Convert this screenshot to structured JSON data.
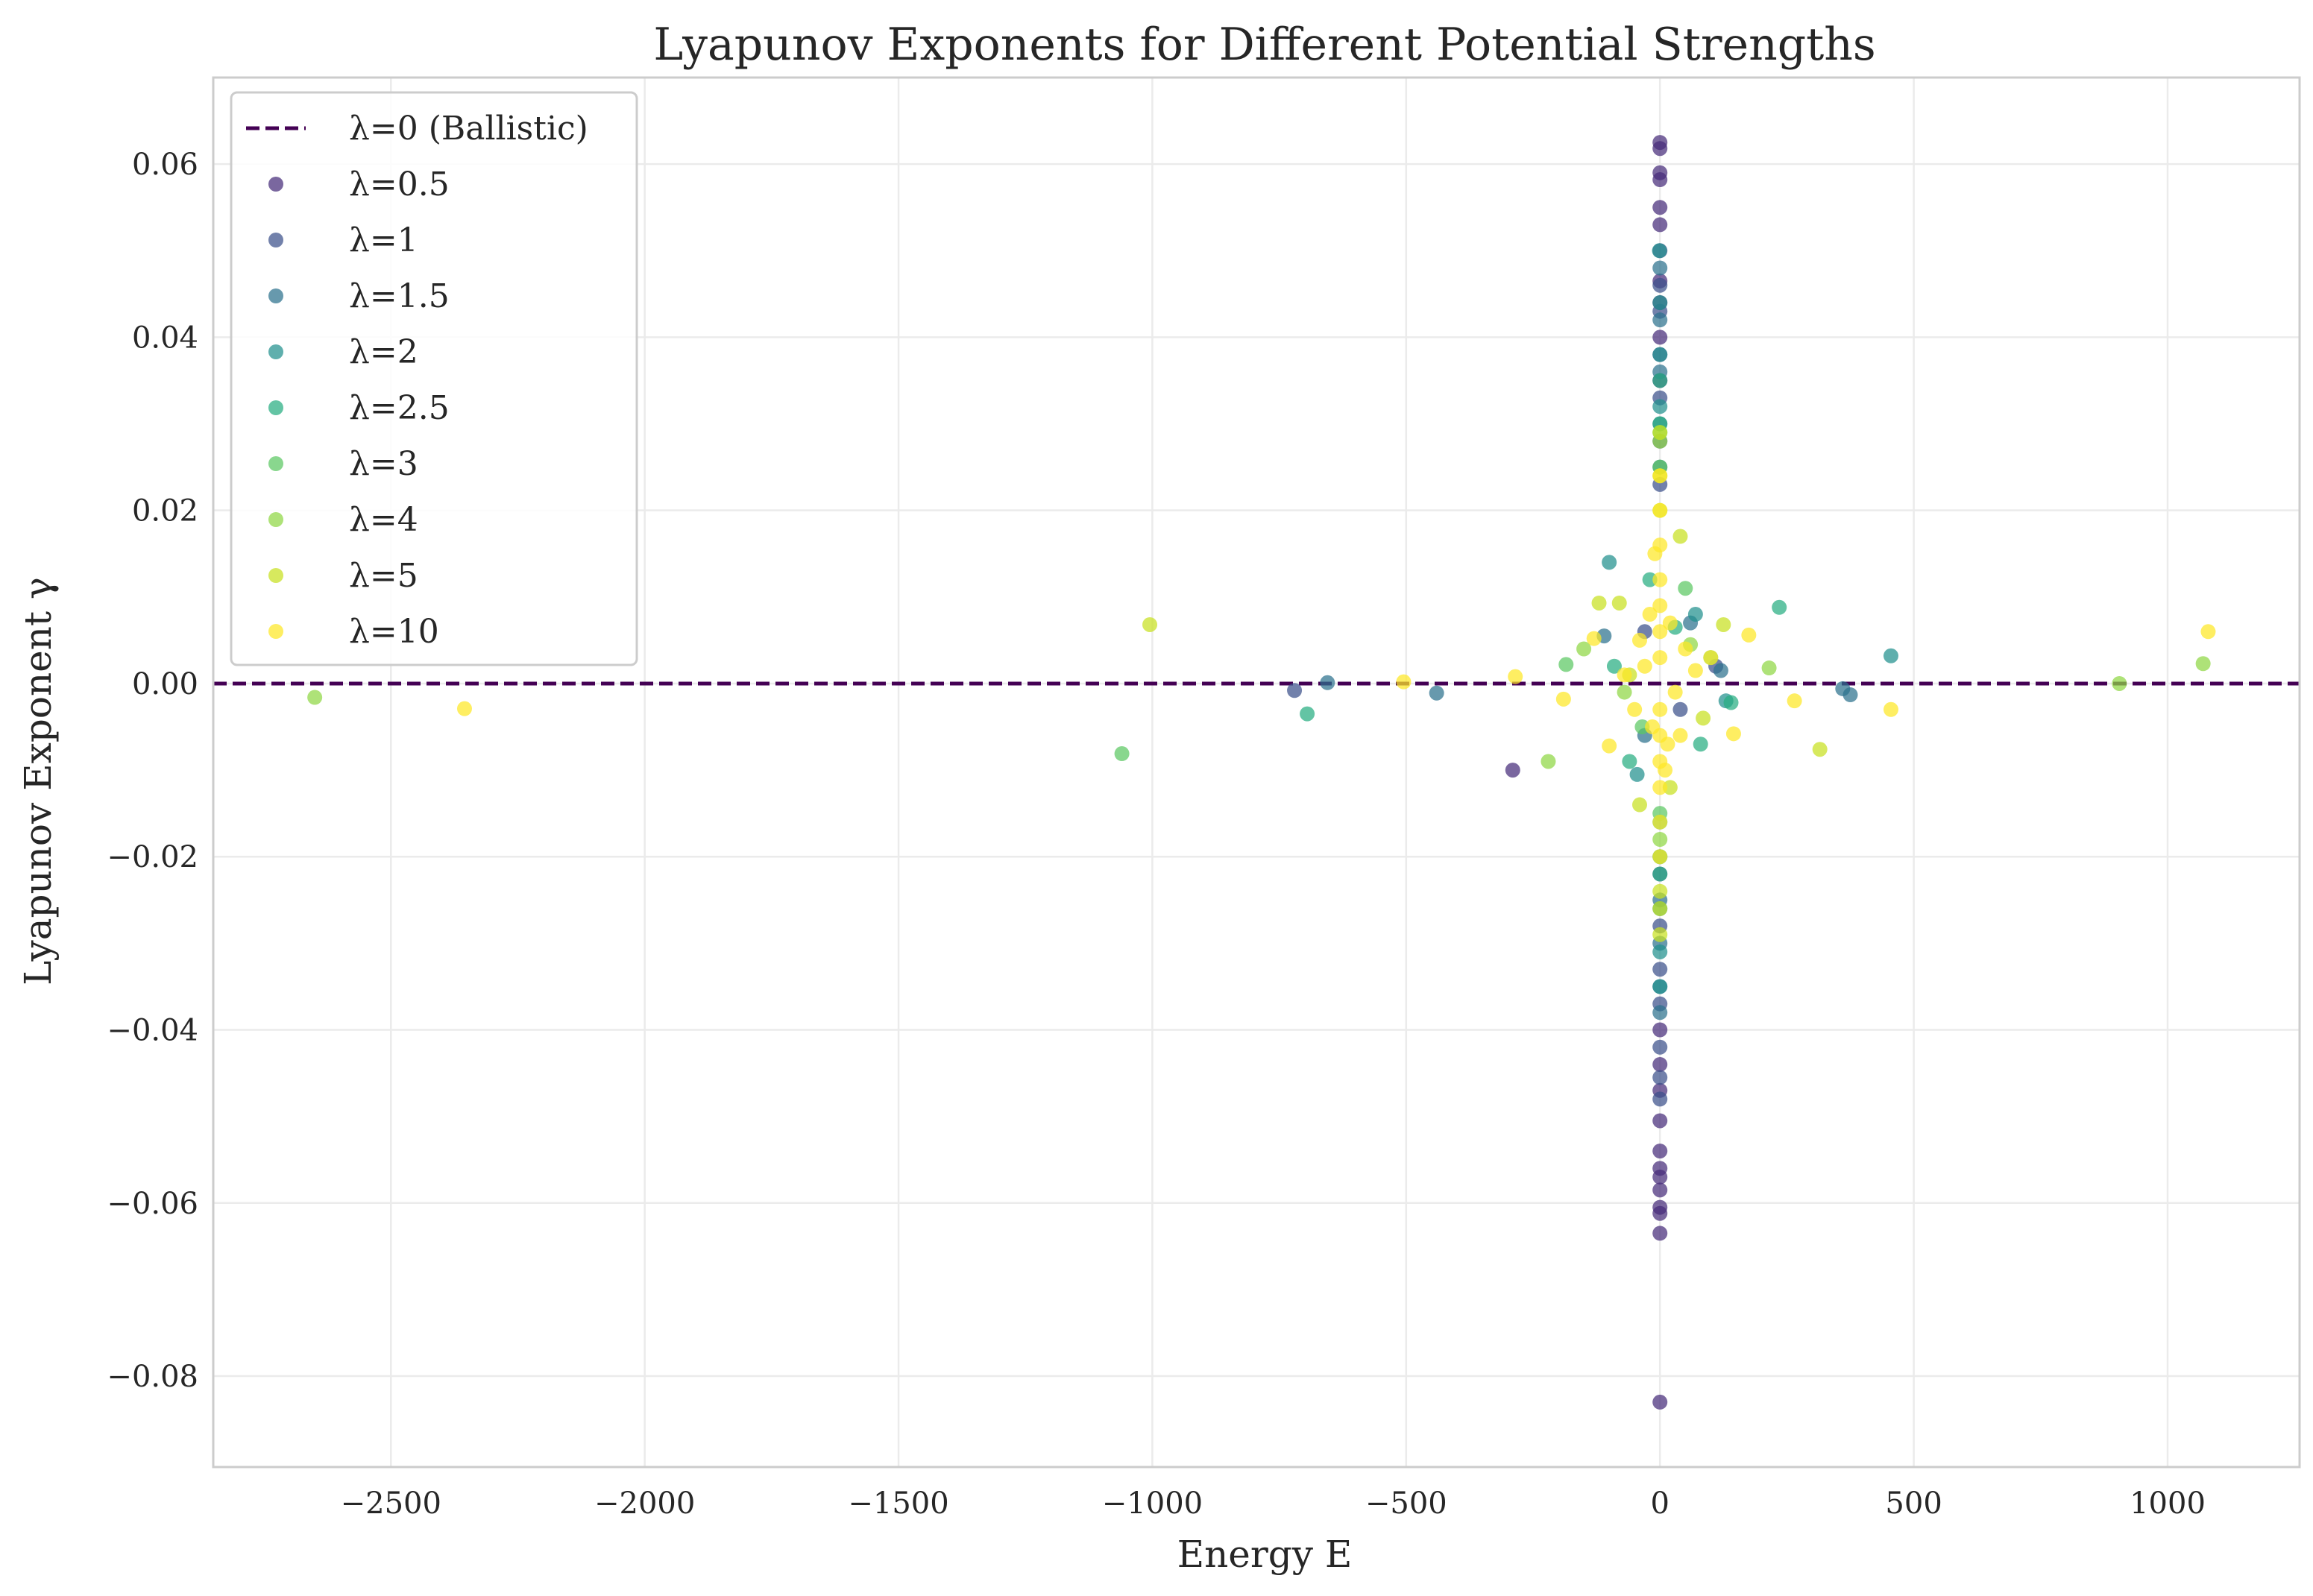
{
  "chart_data": {
    "type": "scatter",
    "title": "Lyapunov Exponents for Different Potential Strengths",
    "xlabel": "Energy E",
    "ylabel": "Lyapunov Exponent γ",
    "xlim": [
      -2850,
      1260
    ],
    "ylim": [
      -0.0905,
      0.07
    ],
    "xticks": [
      -2500,
      -2000,
      -1500,
      -1000,
      -500,
      0,
      500,
      1000
    ],
    "xtick_labels": [
      "−2500",
      "−2000",
      "−1500",
      "−1000",
      "−500",
      "0",
      "500",
      "1000"
    ],
    "yticks": [
      0.06,
      0.04,
      0.02,
      0.0,
      -0.02,
      -0.04,
      -0.06,
      -0.08
    ],
    "ytick_labels": [
      "0.06",
      "0.04",
      "0.02",
      "0.00",
      "−0.02",
      "−0.04",
      "−0.06",
      "−0.08"
    ],
    "grid": true,
    "legend_position": "top-left",
    "reference_line": {
      "label": "λ=0 (Ballistic)",
      "y": 0.0,
      "style": "dashed",
      "color": "#440154"
    },
    "series": [
      {
        "name": "λ=0.5",
        "color": "#472c7a",
        "points": [
          [
            -290,
            -0.01
          ],
          [
            0,
            0.0625
          ],
          [
            0,
            0.0618
          ],
          [
            0,
            0.059
          ],
          [
            0,
            0.0582
          ],
          [
            0,
            0.055
          ],
          [
            0,
            0.053
          ],
          [
            0,
            0.0465
          ],
          [
            0,
            0.044
          ],
          [
            0,
            0.04
          ],
          [
            0,
            0.035
          ],
          [
            0,
            -0.04
          ],
          [
            0,
            -0.044
          ],
          [
            0,
            -0.047
          ],
          [
            0,
            -0.0505
          ],
          [
            0,
            -0.054
          ],
          [
            0,
            -0.056
          ],
          [
            0,
            -0.057
          ],
          [
            0,
            -0.0585
          ],
          [
            0,
            -0.0605
          ],
          [
            0,
            -0.0612
          ],
          [
            0,
            -0.0635
          ],
          [
            0,
            -0.083
          ]
        ]
      },
      {
        "name": "λ=1",
        "color": "#3b518b",
        "points": [
          [
            -720,
            -0.0008
          ],
          [
            0,
            0.05
          ],
          [
            0,
            0.046
          ],
          [
            0,
            0.043
          ],
          [
            0,
            0.038
          ],
          [
            0,
            0.033
          ],
          [
            0,
            0.028
          ],
          [
            0,
            0.023
          ],
          [
            0,
            -0.022
          ],
          [
            0,
            -0.028
          ],
          [
            0,
            -0.033
          ],
          [
            0,
            -0.037
          ],
          [
            0,
            -0.042
          ],
          [
            0,
            -0.0455
          ],
          [
            0,
            -0.048
          ],
          [
            -30,
            0.006
          ],
          [
            40,
            -0.003
          ],
          [
            110,
            0.002
          ]
        ]
      },
      {
        "name": "λ=1.5",
        "color": "#2c718e",
        "points": [
          [
            -655,
            0.0001
          ],
          [
            -440,
            -0.0011
          ],
          [
            360,
            -0.0006
          ],
          [
            375,
            -0.0013
          ],
          [
            0,
            0.048
          ],
          [
            0,
            0.042
          ],
          [
            0,
            0.036
          ],
          [
            0,
            0.03
          ],
          [
            0,
            0.025
          ],
          [
            0,
            -0.025
          ],
          [
            0,
            -0.03
          ],
          [
            0,
            -0.035
          ],
          [
            0,
            -0.038
          ],
          [
            -110,
            0.0055
          ],
          [
            60,
            0.007
          ],
          [
            -30,
            -0.006
          ],
          [
            120,
            0.0015
          ]
        ]
      },
      {
        "name": "λ=2",
        "color": "#21908d",
        "points": [
          [
            455,
            0.0032
          ],
          [
            -1,
            0.05
          ],
          [
            0,
            0.044
          ],
          [
            0,
            0.038
          ],
          [
            0,
            0.032
          ],
          [
            0,
            -0.02
          ],
          [
            0,
            -0.026
          ],
          [
            0,
            -0.031
          ],
          [
            0,
            -0.035
          ],
          [
            -100,
            0.014
          ],
          [
            70,
            0.008
          ],
          [
            -45,
            -0.0105
          ],
          [
            130,
            -0.002
          ]
        ]
      },
      {
        "name": "λ=2.5",
        "color": "#27ad81",
        "points": [
          [
            -695,
            -0.0035
          ],
          [
            235,
            0.0088
          ],
          [
            140,
            -0.0022
          ],
          [
            0,
            0.035
          ],
          [
            0,
            0.03
          ],
          [
            0,
            -0.016
          ],
          [
            0,
            -0.022
          ],
          [
            -60,
            -0.009
          ],
          [
            80,
            -0.007
          ],
          [
            -20,
            0.012
          ],
          [
            30,
            0.0065
          ],
          [
            -90,
            0.002
          ]
        ]
      },
      {
        "name": "λ=3",
        "color": "#5cc863",
        "points": [
          [
            -1060,
            -0.0081
          ],
          [
            -185,
            0.0022
          ],
          [
            0,
            0.029
          ],
          [
            0,
            0.025
          ],
          [
            0,
            -0.015
          ],
          [
            0,
            -0.02
          ],
          [
            50,
            0.011
          ],
          [
            -35,
            -0.005
          ],
          [
            100,
            0.003
          ]
        ]
      },
      {
        "name": "λ=4",
        "color": "#8fd744",
        "points": [
          [
            -2650,
            -0.0016
          ],
          [
            1070,
            0.0023
          ],
          [
            905,
            0.0
          ],
          [
            215,
            0.0018
          ],
          [
            -220,
            -0.009
          ],
          [
            0,
            0.028
          ],
          [
            0,
            -0.018
          ],
          [
            -70,
            -0.001
          ],
          [
            60,
            0.0045
          ],
          [
            -150,
            0.004
          ]
        ]
      },
      {
        "name": "λ=5",
        "color": "#c8e020",
        "points": [
          [
            -1005,
            0.0068
          ],
          [
            315,
            -0.0076
          ],
          [
            125,
            0.0068
          ],
          [
            -120,
            0.0093
          ],
          [
            -80,
            0.0093
          ],
          [
            0,
            0.029
          ],
          [
            0,
            0.024
          ],
          [
            0,
            0.02
          ],
          [
            0,
            -0.024
          ],
          [
            0,
            -0.026
          ],
          [
            0,
            -0.029
          ],
          [
            40,
            0.017
          ],
          [
            -40,
            -0.014
          ],
          [
            20,
            -0.012
          ],
          [
            85,
            -0.004
          ],
          [
            -60,
            0.001
          ]
        ]
      },
      {
        "name": "λ=10",
        "color": "#fde725",
        "points": [
          [
            -2355,
            -0.0029
          ],
          [
            1080,
            0.006
          ],
          [
            455,
            -0.003
          ],
          [
            -505,
            0.0002
          ],
          [
            -285,
            0.0008
          ],
          [
            -190,
            -0.0018
          ],
          [
            -130,
            0.0052
          ],
          [
            -100,
            -0.0072
          ],
          [
            265,
            -0.002
          ],
          [
            175,
            0.0056
          ],
          [
            145,
            -0.0058
          ],
          [
            0,
            0.024
          ],
          [
            0,
            0.02
          ],
          [
            0,
            0.016
          ],
          [
            0,
            0.012
          ],
          [
            0,
            0.009
          ],
          [
            0,
            0.006
          ],
          [
            0,
            0.003
          ],
          [
            0,
            -0.003
          ],
          [
            0,
            -0.006
          ],
          [
            0,
            -0.009
          ],
          [
            0,
            -0.012
          ],
          [
            0,
            -0.016
          ],
          [
            0,
            -0.02
          ],
          [
            -20,
            0.008
          ],
          [
            20,
            0.007
          ],
          [
            -15,
            -0.005
          ],
          [
            15,
            -0.007
          ],
          [
            -30,
            0.002
          ],
          [
            30,
            -0.001
          ],
          [
            50,
            0.004
          ],
          [
            -50,
            -0.003
          ],
          [
            70,
            0.0015
          ],
          [
            -70,
            0.001
          ],
          [
            100,
            0.003
          ],
          [
            -10,
            0.015
          ],
          [
            10,
            -0.01
          ],
          [
            40,
            -0.006
          ],
          [
            -40,
            0.005
          ]
        ]
      }
    ]
  }
}
